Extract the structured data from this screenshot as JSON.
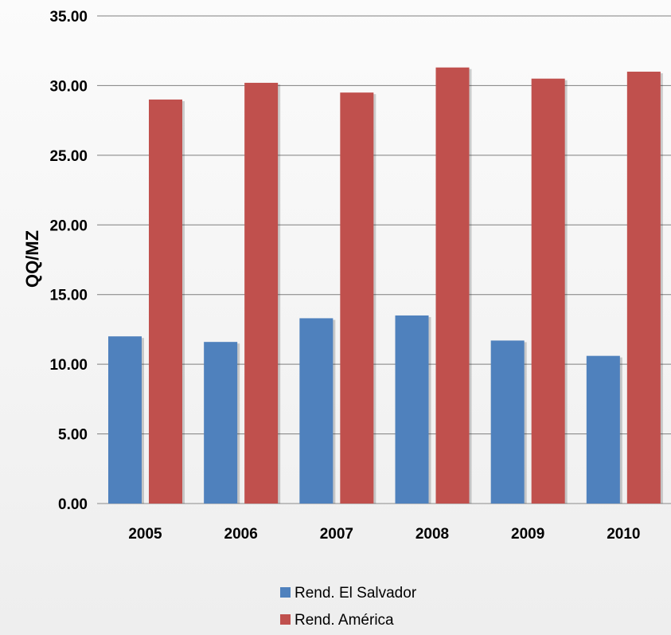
{
  "chart_data": {
    "type": "bar",
    "title": "",
    "ylabel": "QQ/MZ",
    "xlabel": "",
    "categories": [
      "2005",
      "2006",
      "2007",
      "2008",
      "2009",
      "2010"
    ],
    "series": [
      {
        "name": "Rend. El Salvador",
        "color": "#4f81bd",
        "values": [
          12.0,
          11.6,
          13.3,
          13.5,
          11.7,
          10.6
        ]
      },
      {
        "name": "Rend. América",
        "color": "#c0504d",
        "values": [
          29.0,
          30.2,
          29.5,
          31.3,
          30.5,
          31.0
        ]
      }
    ],
    "ylim": [
      0,
      35
    ],
    "yticks": [
      "0.00",
      "5.00",
      "10.00",
      "15.00",
      "20.00",
      "25.00",
      "30.00",
      "35.00"
    ],
    "grid": true,
    "legend_position": "bottom"
  }
}
